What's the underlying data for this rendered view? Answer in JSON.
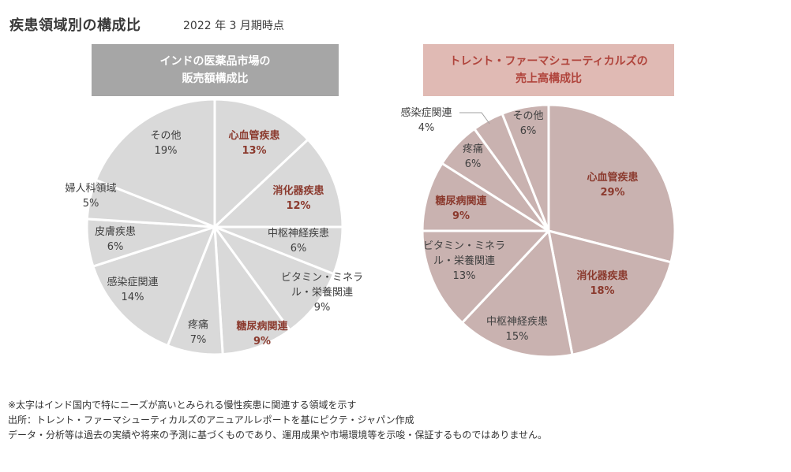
{
  "header": {
    "title": "疾患領域別の構成比",
    "subtitle": "2022 年 3 月期時点"
  },
  "chart_data": [
    {
      "type": "pie",
      "title_line1": "インドの医薬品市場の",
      "title_line2": "販売額構成比",
      "header_bg": "#a6a6a6",
      "header_color": "#ffffff",
      "slice_color": "#d9d9d9",
      "start": "12 o'clock, clockwise",
      "unit": "%",
      "slices": [
        {
          "label": [
            "心血管疾患"
          ],
          "value": 13,
          "bold": true
        },
        {
          "label": [
            "消化器疾患"
          ],
          "value": 12,
          "bold": true
        },
        {
          "label": [
            "中枢神経疾患"
          ],
          "value": 6,
          "bold": false
        },
        {
          "label": [
            "ビタミン・ミネラ",
            "ル・栄養関連"
          ],
          "value": 9,
          "bold": false
        },
        {
          "label": [
            "糖尿病関連"
          ],
          "value": 9,
          "bold": true
        },
        {
          "label": [
            "疼痛"
          ],
          "value": 7,
          "bold": false
        },
        {
          "label": [
            "感染症関連"
          ],
          "value": 14,
          "bold": false
        },
        {
          "label": [
            "皮膚疾患"
          ],
          "value": 6,
          "bold": false
        },
        {
          "label": [
            "婦人科領域"
          ],
          "value": 5,
          "bold": false
        },
        {
          "label": [
            "その他"
          ],
          "value": 19,
          "bold": false
        }
      ]
    },
    {
      "type": "pie",
      "title_line1": "トレント・ファーマシューティカルズの",
      "title_line2": "売上高構成比",
      "header_bg": "#e0bab4",
      "header_color": "#b0443c",
      "slice_color": "#c9b2b0",
      "start": "12 o'clock, clockwise",
      "unit": "%",
      "slices": [
        {
          "label": [
            "心血管疾患"
          ],
          "value": 29,
          "bold": true
        },
        {
          "label": [
            "消化器疾患"
          ],
          "value": 18,
          "bold": true
        },
        {
          "label": [
            "中枢神経疾患"
          ],
          "value": 15,
          "bold": false
        },
        {
          "label": [
            "ビタミン・ミネラ",
            "ル・栄養関連"
          ],
          "value": 13,
          "bold": false
        },
        {
          "label": [
            "糖尿病関連"
          ],
          "value": 9,
          "bold": true
        },
        {
          "label": [
            "疼痛"
          ],
          "value": 6,
          "bold": false
        },
        {
          "label": [
            "感染症関連"
          ],
          "value": 4,
          "bold": false,
          "leader_line": true
        },
        {
          "label": [
            "その他"
          ],
          "value": 6,
          "bold": false
        }
      ]
    }
  ],
  "footnotes": [
    "※太字はインド国内で特にニーズが高いとみられる慢性疾患に関連する領域を示す",
    "出所：トレント・ファーマシューティカルズのアニュアルレポートを基にピクテ・ジャパン作成",
    "データ・分析等は過去の実績や将来の予測に基づくものであり、運用成果や市場環境等を示唆・保証するものではありません。"
  ]
}
